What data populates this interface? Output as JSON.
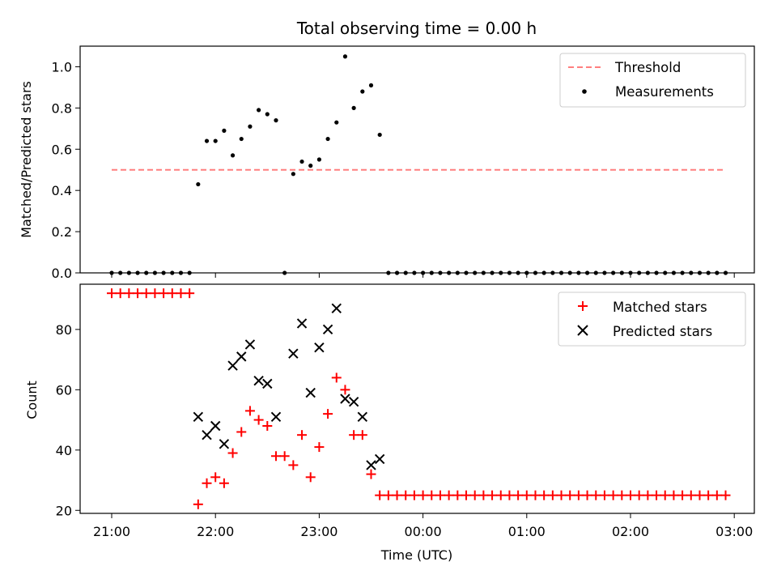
{
  "chart_data": [
    {
      "type": "scatter",
      "panel": "top",
      "title": "Total observing time = 0.00 h",
      "ylabel": "Matched/Predicted stars",
      "xlabel": "",
      "ylim": [
        0,
        1.1
      ],
      "yticks": [
        "0.0",
        "0.2",
        "0.4",
        "0.6",
        "0.8",
        "1.0"
      ],
      "grid": false,
      "legend_position": "top-right",
      "threshold": {
        "name": "Threshold",
        "value": 0.5,
        "x_range": [
          "21:00",
          "02:55"
        ],
        "color": "#ff7f7f",
        "style": "dashed"
      },
      "series": [
        {
          "name": "Measurements",
          "color": "#000000",
          "marker": "dot",
          "x": [
            "21:00",
            "21:05",
            "21:10",
            "21:15",
            "21:20",
            "21:25",
            "21:30",
            "21:35",
            "21:40",
            "21:45",
            "21:50",
            "21:55",
            "22:00",
            "22:05",
            "22:10",
            "22:15",
            "22:20",
            "22:25",
            "22:30",
            "22:35",
            "22:40",
            "22:45",
            "22:50",
            "22:55",
            "23:00",
            "23:05",
            "23:10",
            "23:15",
            "23:20",
            "23:25",
            "23:30",
            "23:35",
            "23:40",
            "23:45",
            "23:50",
            "23:55",
            "00:00",
            "00:05",
            "00:10",
            "00:15",
            "00:20",
            "00:25",
            "00:30",
            "00:35",
            "00:40",
            "00:45",
            "00:50",
            "00:55",
            "01:00",
            "01:05",
            "01:10",
            "01:15",
            "01:20",
            "01:25",
            "01:30",
            "01:35",
            "01:40",
            "01:45",
            "01:50",
            "01:55",
            "02:00",
            "02:05",
            "02:10",
            "02:15",
            "02:20",
            "02:25",
            "02:30",
            "02:35",
            "02:40",
            "02:45",
            "02:50",
            "02:55"
          ],
          "values": [
            0,
            0,
            0,
            0,
            0,
            0,
            0,
            0,
            0,
            0,
            0.43,
            0.64,
            0.64,
            0.69,
            0.57,
            0.65,
            0.71,
            0.79,
            0.77,
            0.74,
            0,
            0.48,
            0.54,
            0.52,
            0.55,
            0.65,
            0.73,
            1.05,
            0.8,
            0.88,
            0.91,
            0.67,
            0,
            0,
            0,
            0,
            0,
            0,
            0,
            0,
            0,
            0,
            0,
            0,
            0,
            0,
            0,
            0,
            0,
            0,
            0,
            0,
            0,
            0,
            0,
            0,
            0,
            0,
            0,
            0,
            0,
            0,
            0,
            0,
            0,
            0,
            0,
            0,
            0,
            0,
            0,
            0
          ]
        }
      ]
    },
    {
      "type": "scatter",
      "panel": "bottom",
      "title": "",
      "ylabel": "Count",
      "xlabel": "Time (UTC)",
      "ylim": [
        19,
        95
      ],
      "yticks": [
        "20",
        "40",
        "60",
        "80"
      ],
      "xticks": [
        "21:00",
        "22:00",
        "23:00",
        "00:00",
        "01:00",
        "02:00",
        "03:00"
      ],
      "grid": false,
      "legend_position": "top-right",
      "series": [
        {
          "name": "Matched stars",
          "color": "#ff0000",
          "marker": "plus",
          "x": [
            "21:00",
            "21:05",
            "21:10",
            "21:15",
            "21:20",
            "21:25",
            "21:30",
            "21:35",
            "21:40",
            "21:45",
            "21:50",
            "21:55",
            "22:00",
            "22:05",
            "22:10",
            "22:15",
            "22:20",
            "22:25",
            "22:30",
            "22:35",
            "22:40",
            "22:45",
            "22:50",
            "22:55",
            "23:00",
            "23:05",
            "23:10",
            "23:15",
            "23:20",
            "23:25",
            "23:30",
            "23:35",
            "23:40",
            "23:45",
            "23:50",
            "23:55",
            "00:00",
            "00:05",
            "00:10",
            "00:15",
            "00:20",
            "00:25",
            "00:30",
            "00:35",
            "00:40",
            "00:45",
            "00:50",
            "00:55",
            "01:00",
            "01:05",
            "01:10",
            "01:15",
            "01:20",
            "01:25",
            "01:30",
            "01:35",
            "01:40",
            "01:45",
            "01:50",
            "01:55",
            "02:00",
            "02:05",
            "02:10",
            "02:15",
            "02:20",
            "02:25",
            "02:30",
            "02:35",
            "02:40",
            "02:45",
            "02:50",
            "02:55"
          ],
          "values": [
            92,
            92,
            92,
            92,
            92,
            92,
            92,
            92,
            92,
            92,
            22,
            29,
            31,
            29,
            39,
            46,
            53,
            50,
            48,
            38,
            38,
            35,
            45,
            31,
            41,
            52,
            64,
            60,
            45,
            45,
            32,
            25,
            25,
            25,
            25,
            25,
            25,
            25,
            25,
            25,
            25,
            25,
            25,
            25,
            25,
            25,
            25,
            25,
            25,
            25,
            25,
            25,
            25,
            25,
            25,
            25,
            25,
            25,
            25,
            25,
            25,
            25,
            25,
            25,
            25,
            25,
            25,
            25,
            25,
            25,
            25,
            25
          ]
        },
        {
          "name": "Predicted stars",
          "color": "#000000",
          "marker": "x",
          "x": [
            "21:50",
            "21:55",
            "22:00",
            "22:05",
            "22:10",
            "22:15",
            "22:20",
            "22:25",
            "22:30",
            "22:35",
            "22:45",
            "22:50",
            "22:55",
            "23:00",
            "23:05",
            "23:10",
            "23:15",
            "23:20",
            "23:25",
            "23:30",
            "23:35"
          ],
          "values": [
            51,
            45,
            48,
            42,
            68,
            71,
            75,
            63,
            62,
            51,
            72,
            82,
            59,
            74,
            80,
            87,
            57,
            56,
            51,
            35,
            37
          ]
        }
      ]
    }
  ]
}
